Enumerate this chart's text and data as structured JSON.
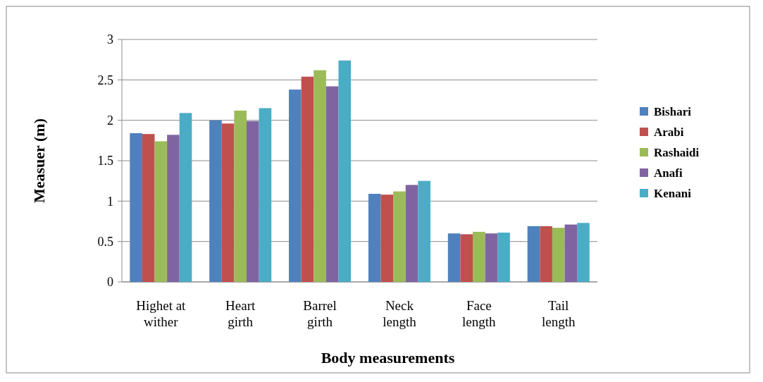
{
  "chart_data": {
    "type": "bar",
    "xlabel": "Body measurements",
    "ylabel": "Measuer (m)",
    "categories": [
      "Highet at wither",
      "Heart girth",
      "Barrel girth",
      "Neck length",
      "Face length",
      "Tail length"
    ],
    "series": [
      {
        "name": "Bishari",
        "color": "#4f81bd",
        "values": [
          1.84,
          2.0,
          2.38,
          1.09,
          0.6,
          0.69
        ]
      },
      {
        "name": "Arabi",
        "color": "#c0504d",
        "values": [
          1.83,
          1.96,
          2.54,
          1.08,
          0.59,
          0.69
        ]
      },
      {
        "name": "Rashaidi",
        "color": "#9bbb59",
        "values": [
          1.74,
          2.12,
          2.62,
          1.12,
          0.62,
          0.67
        ]
      },
      {
        "name": "Anafi",
        "color": "#8064a2",
        "values": [
          1.82,
          1.99,
          2.42,
          1.2,
          0.6,
          0.71
        ]
      },
      {
        "name": "Kenani",
        "color": "#4bacc6",
        "values": [
          2.09,
          2.15,
          2.74,
          1.25,
          0.61,
          0.73
        ]
      }
    ],
    "ylim": [
      0,
      3
    ],
    "yticks": [
      0,
      0.5,
      1,
      1.5,
      2,
      2.5,
      3
    ],
    "grid": "y",
    "legend": "right"
  }
}
